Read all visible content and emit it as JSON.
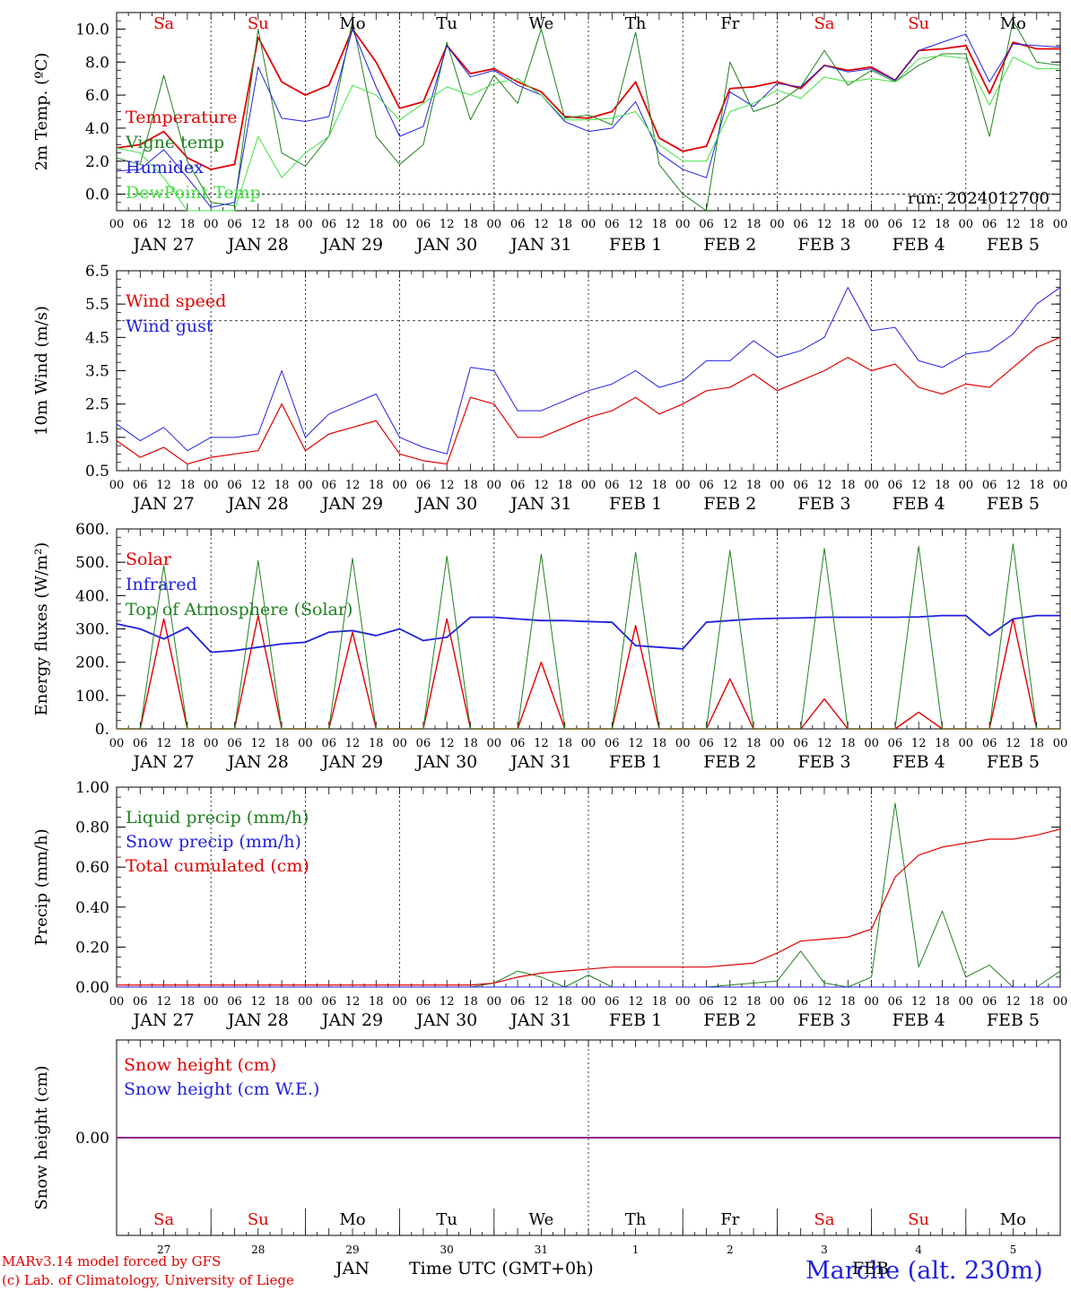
{
  "footer": {
    "model_line": "MARv3.14 model forced by GFS",
    "credit_line": "(c) Lab. of Climatology, University of Liege",
    "month_label_jan": "JAN",
    "month_label_feb": "FEB",
    "xlabel": "Time UTC (GMT+0h)",
    "station": "Marche (alt. 230m)"
  },
  "run_label": "run: 2024012700",
  "colors": {
    "red": "#e00000",
    "green": "#208020",
    "blue": "#2020e0",
    "lightgreen": "#40e040",
    "purple": "#800080",
    "black": "#000000"
  },
  "hour_ticks": [
    "00",
    "06",
    "12",
    "18"
  ],
  "day_labels": [
    "JAN 27",
    "JAN 28",
    "JAN 29",
    "JAN 30",
    "JAN 31",
    "FEB  1",
    "FEB  2",
    "FEB  3",
    "FEB  4",
    "FEB  5"
  ],
  "weekdays": [
    {
      "label": "Sa",
      "color": "#e00000"
    },
    {
      "label": "Su",
      "color": "#e00000"
    },
    {
      "label": "Mo",
      "color": "#000000"
    },
    {
      "label": "Tu",
      "color": "#000000"
    },
    {
      "label": "We",
      "color": "#000000"
    },
    {
      "label": "Th",
      "color": "#000000"
    },
    {
      "label": "Fr",
      "color": "#000000"
    },
    {
      "label": "Sa",
      "color": "#e00000"
    },
    {
      "label": "Su",
      "color": "#e00000"
    },
    {
      "label": "Mo",
      "color": "#000000"
    }
  ],
  "bottom_day_numbers": [
    "27",
    "28",
    "29",
    "30",
    "31",
    "1",
    "2",
    "3",
    "4",
    "5"
  ],
  "chart_data": [
    {
      "type": "line",
      "ylabel": "2m Temp. (ºC)",
      "ylim": [
        -1.0,
        11.0
      ],
      "yticks": [
        "10.0",
        "8.0",
        "6.0",
        "4.0",
        "2.0",
        "0.0"
      ],
      "ytick_values": [
        10,
        8,
        6,
        4,
        2,
        0
      ],
      "reference_line": 0.0,
      "show_weekdays": true,
      "x_hours": [
        0,
        6,
        12,
        18,
        24,
        30,
        36,
        42,
        48,
        54,
        60,
        66,
        72,
        78,
        84,
        90,
        96,
        102,
        108,
        114,
        120,
        126,
        132,
        138,
        144,
        150,
        156,
        162,
        168,
        174,
        180,
        186,
        192,
        198,
        204,
        210,
        216,
        222,
        228,
        234,
        240
      ],
      "series": [
        {
          "name": "Temperature",
          "color": "#e00000",
          "width": 1.8,
          "values": [
            2.8,
            3.0,
            3.8,
            2.2,
            1.5,
            1.8,
            9.5,
            6.8,
            6.0,
            6.6,
            10.0,
            8.0,
            5.2,
            5.6,
            9.0,
            7.3,
            7.6,
            6.8,
            6.2,
            4.7,
            4.6,
            5.0,
            6.8,
            3.4,
            2.6,
            2.9,
            6.4,
            6.5,
            6.8,
            6.4,
            7.8,
            7.5,
            7.7,
            6.9,
            8.7,
            8.8,
            9.0,
            6.1,
            9.2,
            8.8,
            8.8
          ]
        },
        {
          "name": "Vigne temp",
          "color": "#208020",
          "width": 1,
          "values": [
            2.2,
            1.8,
            7.2,
            2.0,
            -0.5,
            -0.7,
            10.0,
            2.5,
            1.7,
            3.5,
            10.5,
            3.5,
            1.8,
            3.0,
            9.2,
            4.5,
            7.2,
            5.5,
            10.0,
            4.6,
            4.8,
            4.2,
            9.8,
            1.8,
            0.0,
            -1.5,
            8.0,
            5.0,
            5.5,
            6.5,
            8.7,
            6.6,
            7.5,
            6.8,
            7.8,
            8.5,
            8.5,
            3.5,
            10.5,
            8.0,
            7.8
          ]
        },
        {
          "name": "Humidex",
          "color": "#2020e0",
          "width": 1,
          "values": [
            1.4,
            1.5,
            2.7,
            1.0,
            -0.8,
            -0.5,
            7.7,
            4.6,
            4.4,
            4.7,
            10.0,
            6.5,
            3.5,
            4.1,
            9.0,
            7.1,
            7.5,
            6.6,
            6.0,
            4.4,
            3.8,
            4.0,
            5.6,
            2.5,
            1.5,
            1.0,
            6.2,
            5.3,
            6.7,
            6.5,
            7.8,
            7.4,
            7.6,
            6.9,
            8.7,
            9.2,
            9.7,
            6.8,
            9.1,
            9.0,
            8.9
          ]
        },
        {
          "name": "DewPoint Temp",
          "color": "#40e040",
          "width": 1,
          "values": [
            2.8,
            2.5,
            1.0,
            -1.0,
            -1.5,
            -1.2,
            3.5,
            1.0,
            2.5,
            3.5,
            6.6,
            6.0,
            4.5,
            5.5,
            6.5,
            6.0,
            6.7,
            7.0,
            6.0,
            4.5,
            4.5,
            4.6,
            5.0,
            3.0,
            2.0,
            2.0,
            5.0,
            5.5,
            6.3,
            5.8,
            7.1,
            6.8,
            7.0,
            6.8,
            8.2,
            8.4,
            8.2,
            5.4,
            8.3,
            7.6,
            7.6
          ]
        }
      ]
    },
    {
      "type": "line",
      "ylabel": "10m Wind (m/s)",
      "ylim": [
        0.5,
        6.5
      ],
      "yticks": [
        "6.5",
        "5.5",
        "4.5",
        "3.5",
        "2.5",
        "1.5",
        "0.5"
      ],
      "ytick_values": [
        6.5,
        5.5,
        4.5,
        3.5,
        2.5,
        1.5,
        0.5
      ],
      "reference_line": 5.0,
      "show_weekdays": false,
      "x_hours": [
        0,
        6,
        12,
        18,
        24,
        30,
        36,
        42,
        48,
        54,
        60,
        66,
        72,
        78,
        84,
        90,
        96,
        102,
        108,
        114,
        120,
        126,
        132,
        138,
        144,
        150,
        156,
        162,
        168,
        174,
        180,
        186,
        192,
        198,
        204,
        210,
        216,
        222,
        228,
        234,
        240
      ],
      "series": [
        {
          "name": "Wind speed",
          "color": "#e00000",
          "width": 1.2,
          "values": [
            1.4,
            0.9,
            1.2,
            0.7,
            0.9,
            1.0,
            1.1,
            2.5,
            1.1,
            1.6,
            1.8,
            2.0,
            1.0,
            0.8,
            0.7,
            2.7,
            2.5,
            1.5,
            1.5,
            1.8,
            2.1,
            2.3,
            2.7,
            2.2,
            2.5,
            2.9,
            3.0,
            3.4,
            2.9,
            3.2,
            3.5,
            3.9,
            3.5,
            3.7,
            3.0,
            2.8,
            3.1,
            3.0,
            3.6,
            4.2,
            4.5
          ]
        },
        {
          "name": "Wind gust",
          "color": "#2020e0",
          "width": 1,
          "values": [
            1.9,
            1.4,
            1.8,
            1.1,
            1.5,
            1.5,
            1.6,
            3.5,
            1.5,
            2.2,
            2.5,
            2.8,
            1.5,
            1.2,
            1.0,
            3.6,
            3.5,
            2.3,
            2.3,
            2.6,
            2.9,
            3.1,
            3.5,
            3.0,
            3.2,
            3.8,
            3.8,
            4.4,
            3.9,
            4.1,
            4.5,
            6.0,
            4.7,
            4.8,
            3.8,
            3.6,
            4.0,
            4.1,
            4.6,
            5.5,
            6.0
          ]
        }
      ]
    },
    {
      "type": "line",
      "ylabel": "Energy fluxes (W/m²)",
      "ylim": [
        0,
        600
      ],
      "yticks": [
        "600.",
        "500.",
        "400.",
        "300.",
        "200.",
        "100.",
        "0."
      ],
      "ytick_values": [
        600,
        500,
        400,
        300,
        200,
        100,
        0
      ],
      "show_weekdays": false,
      "x_hours": [
        0,
        6,
        12,
        18,
        24,
        30,
        36,
        42,
        48,
        54,
        60,
        66,
        72,
        78,
        84,
        90,
        96,
        102,
        108,
        114,
        120,
        126,
        132,
        138,
        144,
        150,
        156,
        162,
        168,
        174,
        180,
        186,
        192,
        198,
        204,
        210,
        216,
        222,
        228,
        234,
        240
      ],
      "series": [
        {
          "name": "Solar",
          "color": "#e00000",
          "width": 1.4,
          "values": [
            0,
            0,
            330,
            0,
            0,
            0,
            340,
            0,
            0,
            0,
            290,
            0,
            0,
            0,
            330,
            0,
            0,
            0,
            200,
            0,
            0,
            0,
            310,
            0,
            0,
            0,
            150,
            0,
            0,
            0,
            90,
            0,
            0,
            0,
            50,
            0,
            0,
            0,
            330,
            0,
            0
          ]
        },
        {
          "name": "Infrared",
          "color": "#2020e0",
          "width": 1.8,
          "values": [
            315,
            300,
            270,
            305,
            230,
            235,
            245,
            255,
            260,
            290,
            295,
            280,
            300,
            265,
            275,
            335,
            335,
            330,
            325,
            325,
            322,
            320,
            250,
            245,
            240,
            320,
            325,
            330,
            332,
            333,
            335,
            335,
            335,
            335,
            336,
            340,
            340,
            280,
            330,
            340,
            340
          ]
        },
        {
          "name": "Top of Atmosphere (Solar)",
          "color": "#208020",
          "width": 1,
          "values": [
            0,
            0,
            490,
            0,
            0,
            0,
            505,
            0,
            0,
            0,
            512,
            0,
            0,
            0,
            518,
            0,
            0,
            0,
            524,
            0,
            0,
            0,
            530,
            0,
            0,
            0,
            536,
            0,
            0,
            0,
            542,
            0,
            0,
            0,
            548,
            0,
            0,
            0,
            555,
            0,
            0
          ]
        }
      ]
    },
    {
      "type": "line",
      "ylabel": "Precip (mm/h)",
      "ylim": [
        0.0,
        1.0
      ],
      "yticks": [
        "1.00",
        "0.80",
        "0.60",
        "0.40",
        "0.20",
        "0.00"
      ],
      "ytick_values": [
        1.0,
        0.8,
        0.6,
        0.4,
        0.2,
        0.0
      ],
      "show_weekdays": false,
      "x_hours": [
        0,
        6,
        12,
        18,
        24,
        30,
        36,
        42,
        48,
        54,
        60,
        66,
        72,
        78,
        84,
        90,
        96,
        102,
        108,
        114,
        120,
        126,
        132,
        138,
        144,
        150,
        156,
        162,
        168,
        174,
        180,
        186,
        192,
        198,
        204,
        210,
        216,
        222,
        228,
        234,
        240
      ],
      "series": [
        {
          "name": "Liquid precip (mm/h)",
          "color": "#208020",
          "width": 1,
          "values": [
            0,
            0,
            0,
            0,
            0,
            0,
            0,
            0,
            0,
            0,
            0,
            0,
            0,
            0,
            0,
            0,
            0.02,
            0.08,
            0.05,
            0,
            0.06,
            0,
            0,
            0,
            0,
            0,
            0.01,
            0.02,
            0.03,
            0.18,
            0.02,
            0,
            0.05,
            0.92,
            0.1,
            0.38,
            0.05,
            0.11,
            0,
            0,
            0.08
          ]
        },
        {
          "name": "Snow precip (mm/h)",
          "color": "#2020e0",
          "width": 1,
          "values": [
            0,
            0,
            0,
            0,
            0,
            0,
            0,
            0,
            0,
            0,
            0,
            0,
            0,
            0,
            0,
            0,
            0,
            0,
            0,
            0,
            0,
            0,
            0,
            0,
            0,
            0,
            0,
            0,
            0,
            0,
            0,
            0,
            0,
            0,
            0,
            0,
            0,
            0,
            0,
            0,
            0
          ]
        },
        {
          "name": "Total cumulated (cm)",
          "color": "#e00000",
          "width": 1.2,
          "values": [
            0.01,
            0.01,
            0.01,
            0.01,
            0.01,
            0.01,
            0.01,
            0.01,
            0.01,
            0.01,
            0.01,
            0.01,
            0.01,
            0.01,
            0.01,
            0.01,
            0.02,
            0.05,
            0.07,
            0.08,
            0.09,
            0.1,
            0.1,
            0.1,
            0.1,
            0.1,
            0.11,
            0.12,
            0.17,
            0.23,
            0.24,
            0.25,
            0.29,
            0.55,
            0.66,
            0.7,
            0.72,
            0.74,
            0.74,
            0.76,
            0.79
          ]
        }
      ]
    },
    {
      "type": "line",
      "ylabel": "Snow height (cm)",
      "ylim": [
        -1,
        1
      ],
      "yticks": [
        "0.00"
      ],
      "ytick_values": [
        0
      ],
      "show_weekdays": false,
      "x_hours": [
        0,
        240
      ],
      "series": [
        {
          "name": "Snow height (cm)",
          "color": "#e00000",
          "width": 1.2,
          "values": [
            0,
            0
          ]
        },
        {
          "name": "Snow height (cm W.E.)",
          "color": "#2020e0",
          "width": 1.2,
          "values": [
            0,
            0
          ]
        },
        {
          "name": "",
          "color": "#800080",
          "width": 1.4,
          "values": [
            0,
            0
          ]
        }
      ]
    }
  ]
}
